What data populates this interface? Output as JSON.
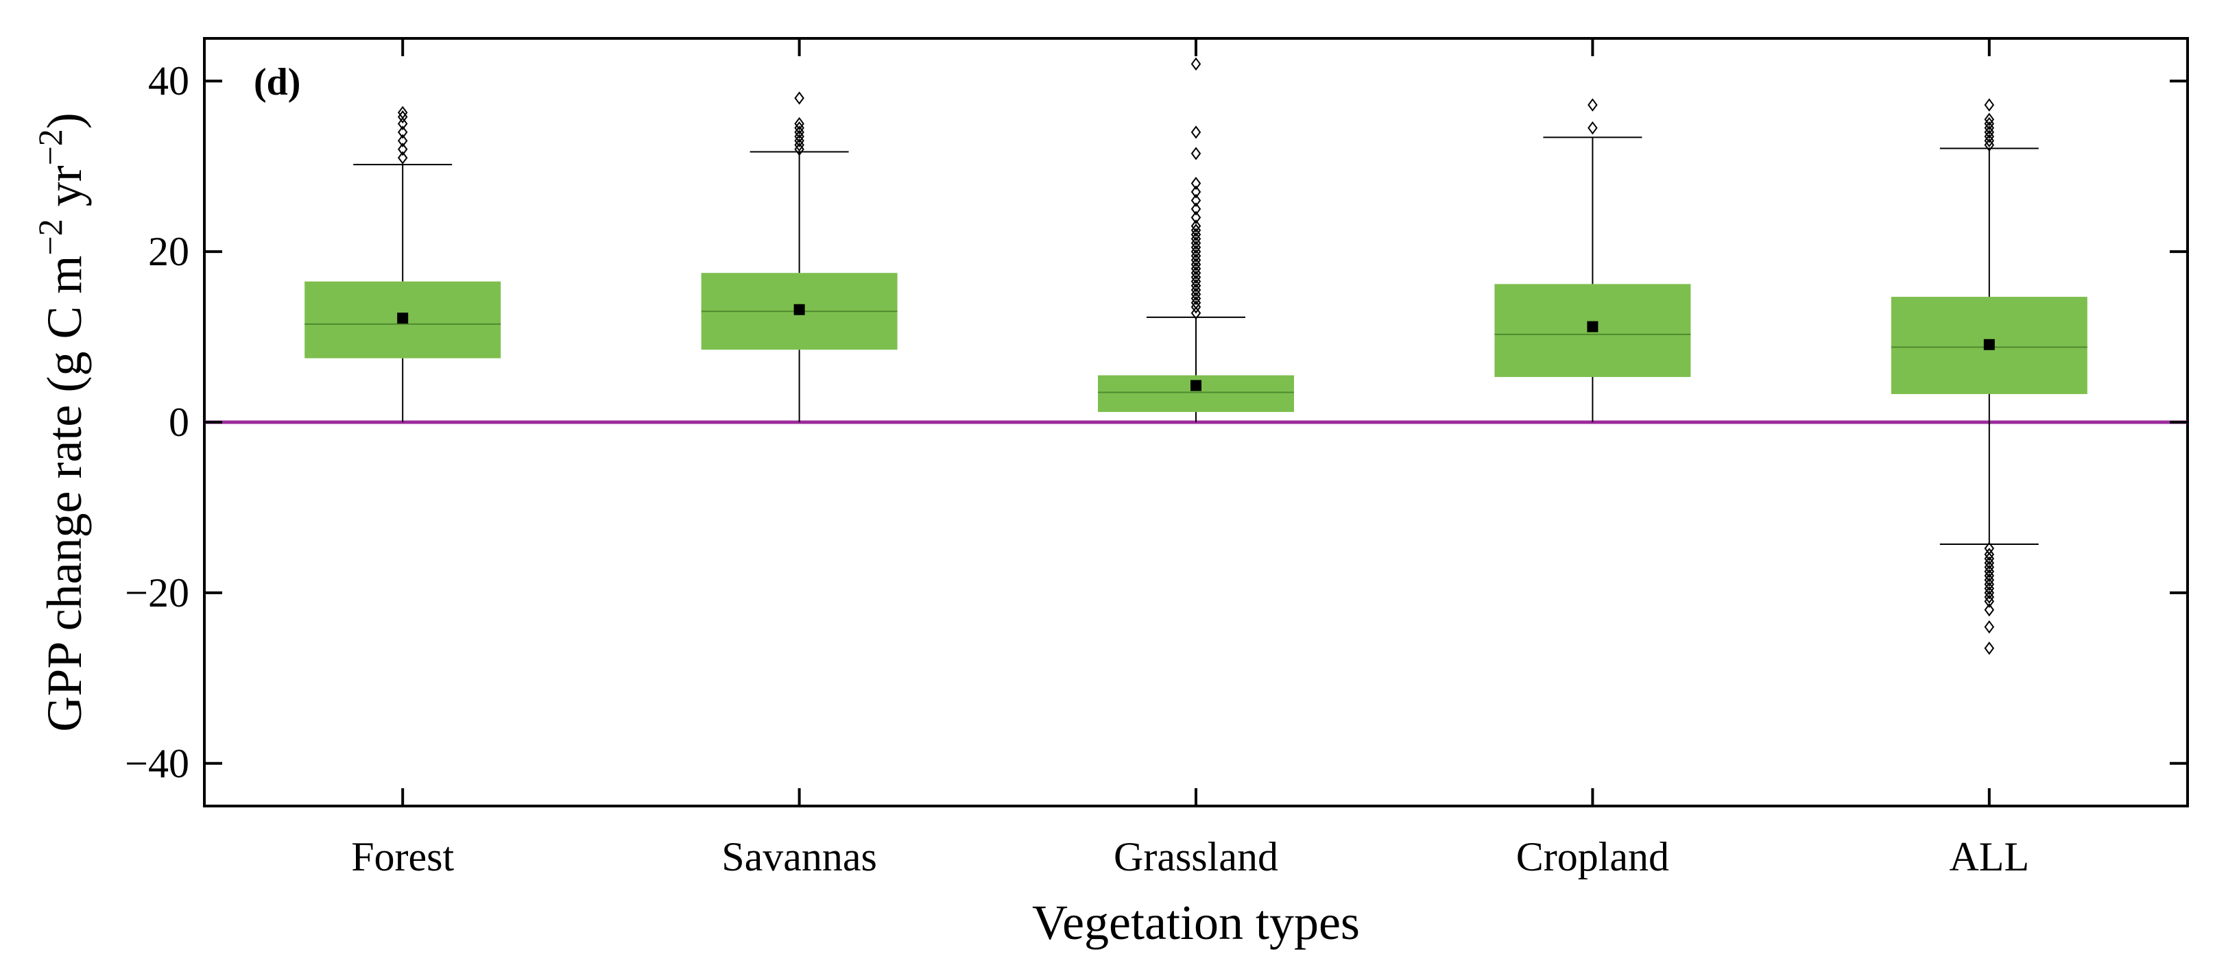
{
  "chart_data": {
    "type": "box",
    "panel_label": "(d)",
    "xlabel": "Vegetation types",
    "ylabel_parts": {
      "prefix": "GPP change rate (g C m",
      "exp1": "−2",
      "mid": " yr",
      "exp2": "−2",
      "suffix": ")"
    },
    "ylim": [
      -45,
      45
    ],
    "yticks": [
      40,
      20,
      0,
      -20,
      -40
    ],
    "ytick_labels": [
      "40",
      "20",
      "0",
      "−20",
      "−40"
    ],
    "reference_line": 0,
    "categories": [
      "Forest",
      "Savannas",
      "Grassland",
      "Cropland",
      "ALL"
    ],
    "boxes": [
      {
        "name": "Forest",
        "q1": 7.5,
        "median": 11.5,
        "q3": 16.5,
        "mean": 12.2,
        "whisker_low": 0,
        "whisker_high": 30.2,
        "outliers": [
          31,
          32,
          33,
          34,
          35,
          35.8,
          36.3
        ]
      },
      {
        "name": "Savannas",
        "q1": 8.5,
        "median": 13.0,
        "q3": 17.5,
        "mean": 13.2,
        "whisker_low": 0,
        "whisker_high": 31.7,
        "outliers": [
          32,
          32.5,
          33,
          33.5,
          34,
          34.5,
          35,
          38
        ]
      },
      {
        "name": "Grassland",
        "q1": 1.2,
        "median": 3.5,
        "q3": 5.5,
        "mean": 4.3,
        "whisker_low": 0,
        "whisker_high": 12.3,
        "outliers": [
          12.8,
          13.5,
          14,
          14.5,
          15,
          15.5,
          16,
          16.5,
          17,
          17.5,
          18,
          18.5,
          19,
          19.5,
          20,
          20.5,
          21,
          21.5,
          22,
          22.5,
          23,
          24,
          25,
          26,
          27,
          28,
          31.5,
          34,
          42
        ]
      },
      {
        "name": "Cropland",
        "q1": 5.3,
        "median": 10.3,
        "q3": 16.2,
        "mean": 11.2,
        "whisker_low": 0,
        "whisker_high": 33.4,
        "outliers": [
          34.5,
          37.2
        ]
      },
      {
        "name": "ALL",
        "q1": 3.3,
        "median": 8.8,
        "q3": 14.7,
        "mean": 9.1,
        "whisker_low": -14.3,
        "whisker_high": 32.1,
        "outliers": [
          32.5,
          33,
          33.5,
          34,
          34.5,
          35,
          35.5,
          37.2,
          -14.8,
          -15.5,
          -16,
          -16.5,
          -17,
          -17.5,
          -18,
          -18.5,
          -19,
          -19.5,
          -20,
          -20.5,
          -21,
          -22,
          -24,
          -26.5
        ]
      }
    ],
    "colors": {
      "box": "#7dbf4e",
      "median": "#4f8a2e",
      "reference": "#9b2a9b",
      "axis": "#000000"
    }
  }
}
